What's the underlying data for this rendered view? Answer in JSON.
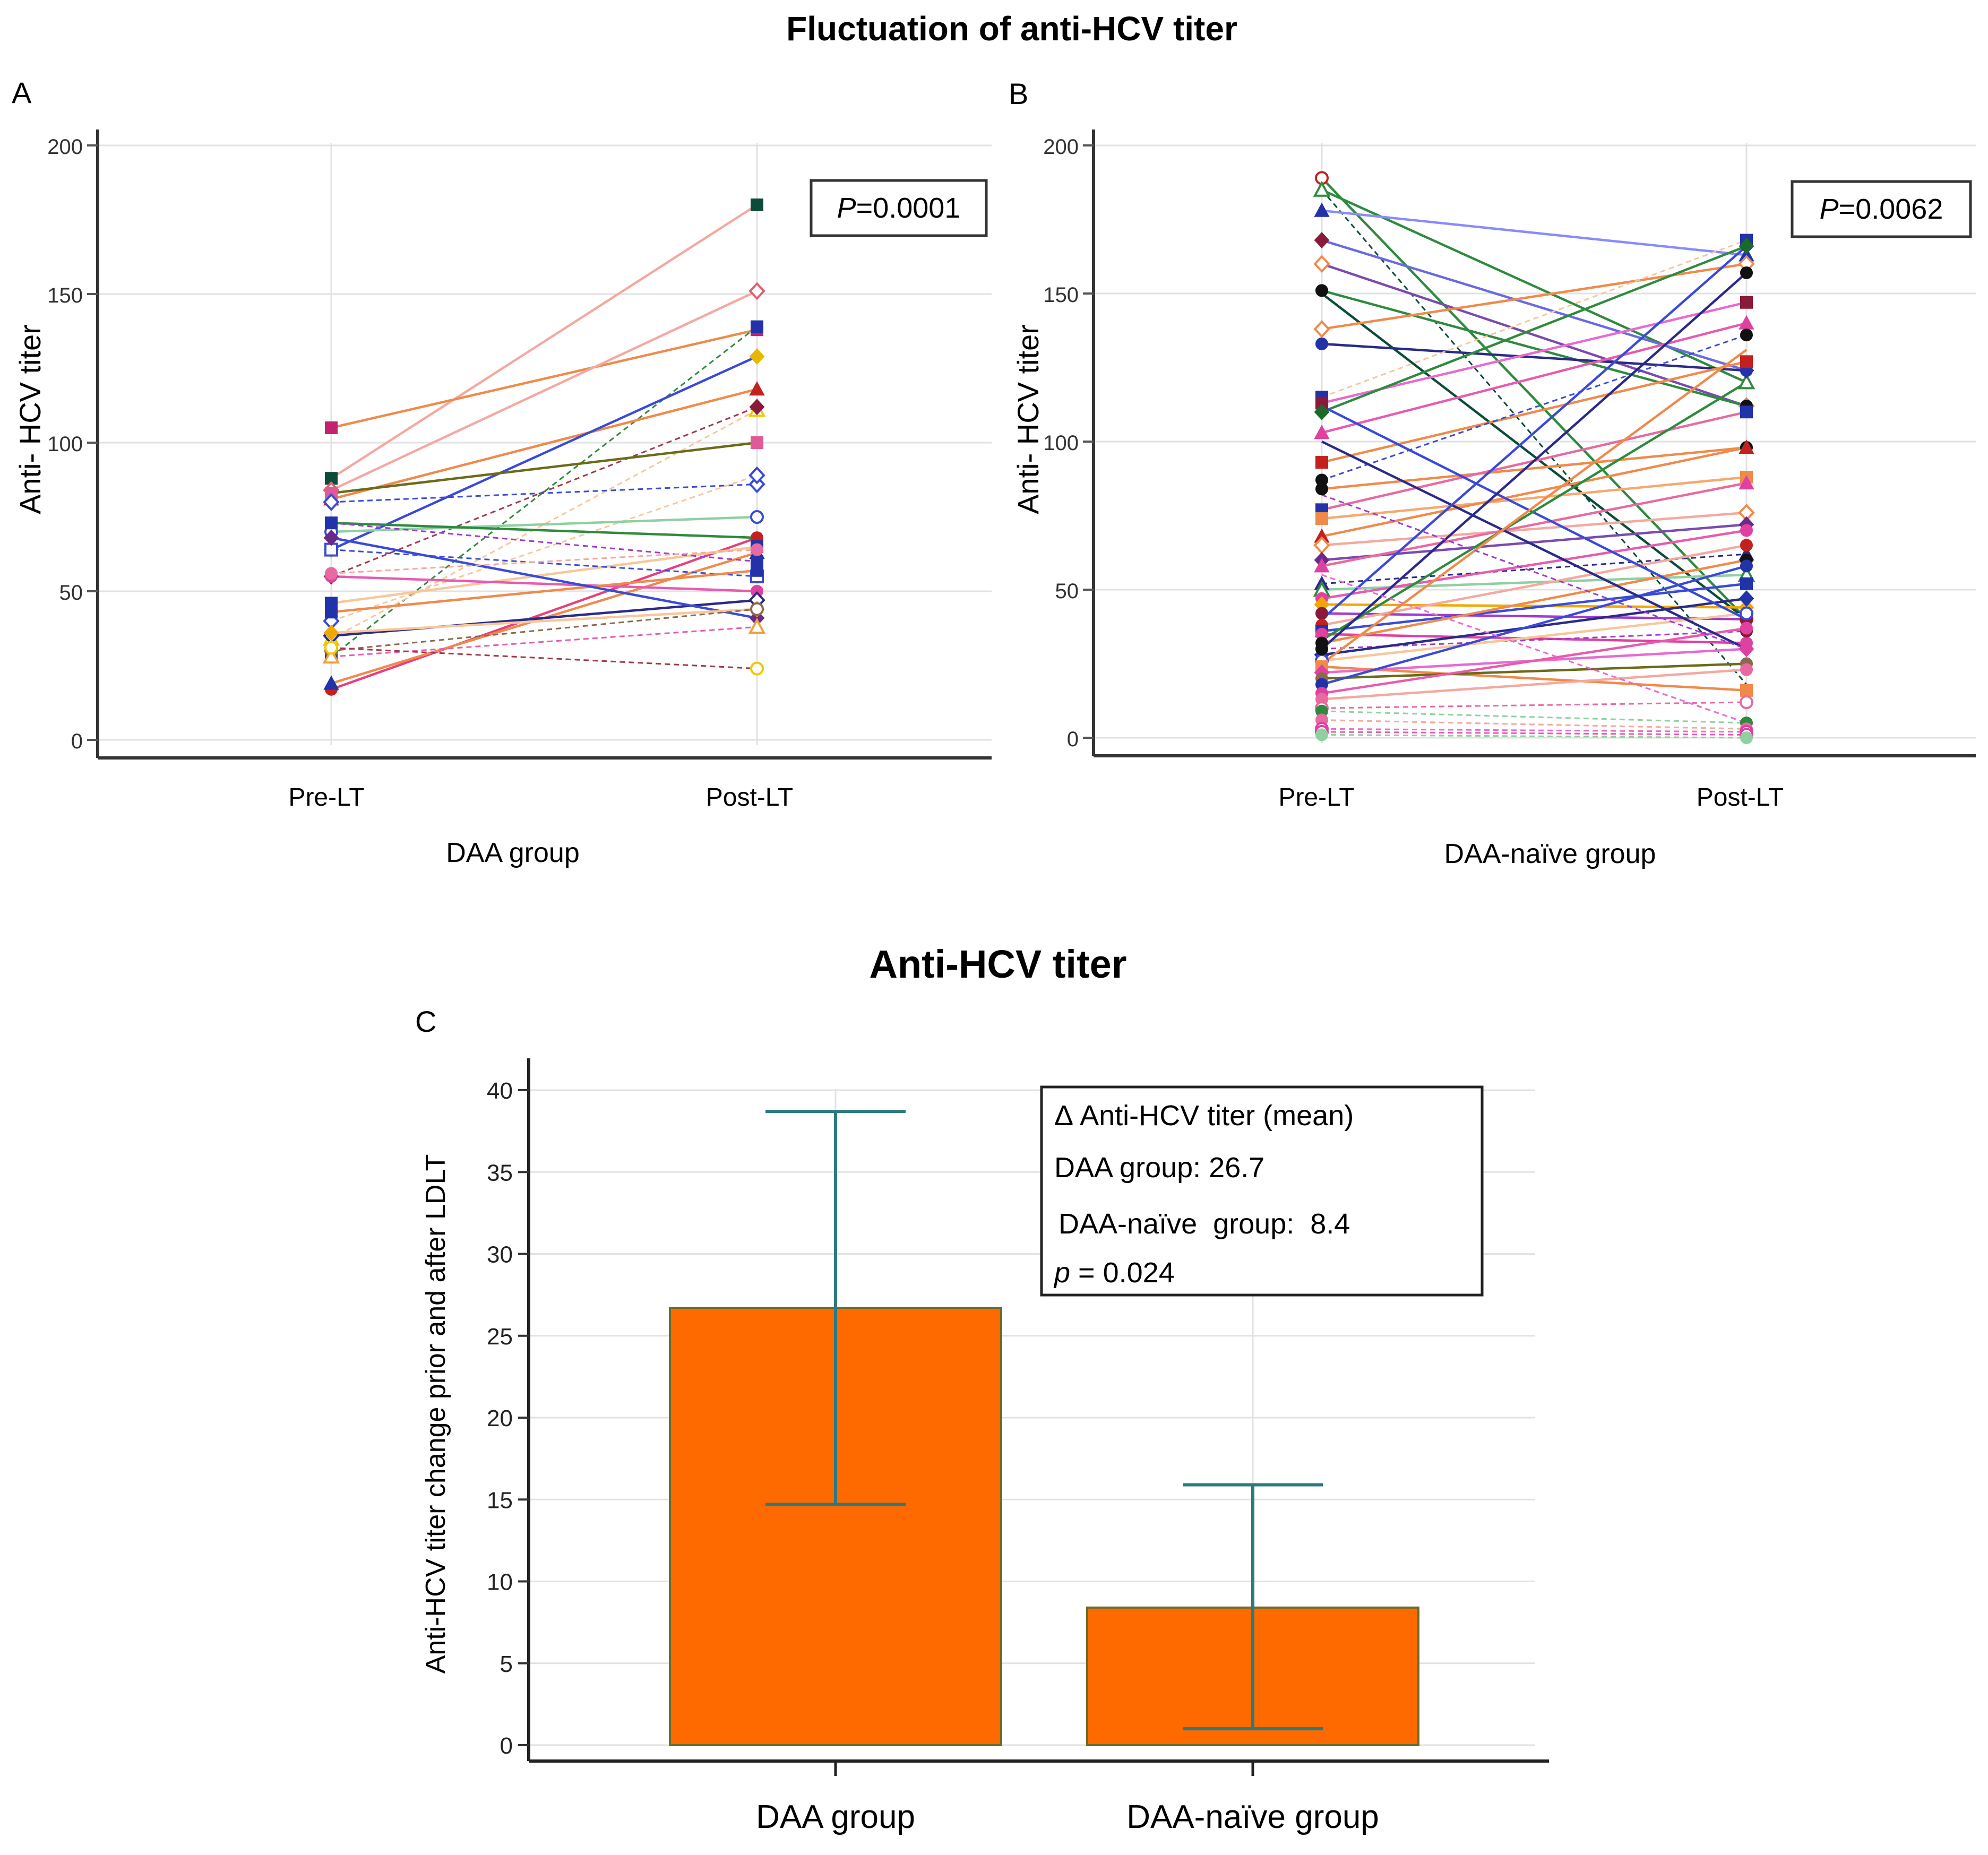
{
  "figure": {
    "title_top": "Fluctuation of anti-HCV titer",
    "title_bottom": "Anti-HCV titer"
  },
  "colors": {
    "bar": "#ff6a00",
    "bar_edge": "#6b6b2a",
    "errorbar": "#2a7a80",
    "axis": "#333333",
    "grid": "#e2e2e2"
  },
  "chart_data": [
    {
      "panel": "A",
      "type": "line",
      "title": "",
      "xlabel": "DAA group",
      "ylabel": "Anti- HCV titer",
      "categories": [
        "Pre-LT",
        "Post-LT"
      ],
      "ylim": [
        0,
        200
      ],
      "yticks": [
        "0",
        "50",
        "100",
        "150",
        "200"
      ],
      "annotation": {
        "prefix": "P",
        "text": "=0.0001"
      },
      "series": [
        {
          "values": [
            88,
            180
          ],
          "color": "#f4a9a0",
          "dash": false,
          "marker": "square",
          "mcolor": "#0b4b3a"
        },
        {
          "values": [
            105,
            138
          ],
          "color": "#f08a4b",
          "dash": false,
          "marker": "square",
          "mcolor": "#c0246f"
        },
        {
          "values": [
            84,
            151
          ],
          "color": "#f4a9a0",
          "dash": false,
          "marker": "diamond-open",
          "mcolor": "#e06070"
        },
        {
          "values": [
            28,
            139
          ],
          "color": "#2e8b3e",
          "dash": true,
          "marker": "square",
          "mcolor": "#2233aa"
        },
        {
          "values": [
            81,
            118
          ],
          "color": "#f08a4b",
          "dash": false,
          "marker": "triangle",
          "mcolor": "#c42020"
        },
        {
          "values": [
            64,
            129
          ],
          "color": "#3a4ad8",
          "dash": false,
          "marker": "diamond",
          "mcolor": "#e6b800"
        },
        {
          "values": [
            34,
            111
          ],
          "color": "#f7c79a",
          "dash": true,
          "marker": "triangle-open",
          "mcolor": "#f0c800"
        },
        {
          "values": [
            55,
            112
          ],
          "color": "#a03a4a",
          "dash": true,
          "marker": "diamond",
          "mcolor": "#8a1a3a"
        },
        {
          "values": [
            83,
            100
          ],
          "color": "#6b6b1a",
          "dash": false,
          "marker": "square",
          "mcolor": "#e05a9a"
        },
        {
          "values": [
            80,
            86
          ],
          "color": "#3a4ad8",
          "dash": true,
          "marker": "diamond-open",
          "mcolor": "#3a4ad8"
        },
        {
          "values": [
            40,
            89
          ],
          "color": "#f7c79a",
          "dash": true,
          "marker": "diamond-open",
          "mcolor": "#3a4ad8"
        },
        {
          "values": [
            70,
            75
          ],
          "color": "#8fd0a0",
          "dash": false,
          "marker": "circle-open",
          "mcolor": "#3a4ad8"
        },
        {
          "values": [
            73,
            68
          ],
          "color": "#2e8b3e",
          "dash": false,
          "marker": "circle",
          "mcolor": "#c42020"
        },
        {
          "values": [
            17,
            68
          ],
          "color": "#e8407a",
          "dash": false,
          "marker": "circle",
          "mcolor": "#c42020"
        },
        {
          "values": [
            46,
            65
          ],
          "color": "#f7c79a",
          "dash": false,
          "marker": "square",
          "mcolor": "#2233aa"
        },
        {
          "values": [
            19,
            63
          ],
          "color": "#f08a4b",
          "dash": false,
          "marker": "triangle",
          "mcolor": "#2233aa"
        },
        {
          "values": [
            73,
            60
          ],
          "color": "#a03ad0",
          "dash": true,
          "marker": "square",
          "mcolor": "#2233aa"
        },
        {
          "values": [
            64,
            55
          ],
          "color": "#3a4ad8",
          "dash": true,
          "marker": "square-open",
          "mcolor": "#3a4ad8"
        },
        {
          "values": [
            55,
            50
          ],
          "color": "#e85ab0",
          "dash": false,
          "marker": "circle",
          "mcolor": "#e040a0"
        },
        {
          "values": [
            43,
            57
          ],
          "color": "#f08a4b",
          "dash": false,
          "marker": "square",
          "mcolor": "#2233aa"
        },
        {
          "values": [
            35,
            47
          ],
          "color": "#2a2a8a",
          "dash": false,
          "marker": "diamond-open",
          "mcolor": "#2a2a8a"
        },
        {
          "values": [
            68,
            41
          ],
          "color": "#3a4ad8",
          "dash": false,
          "marker": "diamond",
          "mcolor": "#6a2a8a"
        },
        {
          "values": [
            36,
            44
          ],
          "color": "#f7c79a",
          "dash": false,
          "marker": "diamond",
          "mcolor": "#f0a800"
        },
        {
          "values": [
            30,
            44
          ],
          "color": "#8a6a4a",
          "dash": true,
          "marker": "circle-open",
          "mcolor": "#8a6a4a"
        },
        {
          "values": [
            28,
            38
          ],
          "color": "#e85ab0",
          "dash": true,
          "marker": "triangle-open",
          "mcolor": "#f0a040"
        },
        {
          "values": [
            31,
            24
          ],
          "color": "#a03a4a",
          "dash": true,
          "marker": "circle-open",
          "mcolor": "#f0c800"
        },
        {
          "values": [
            56,
            64
          ],
          "color": "#f4a9a0",
          "dash": true,
          "marker": "circle",
          "mcolor": "#e86aa0"
        }
      ]
    },
    {
      "panel": "B",
      "type": "line",
      "title": "",
      "xlabel": "DAA-naïve group",
      "ylabel": "Anti- HCV titer",
      "categories": [
        "Pre-LT",
        "Post-LT"
      ],
      "ylim": [
        0,
        200
      ],
      "yticks": [
        "0",
        "50",
        "100",
        "150",
        "200"
      ],
      "annotation": {
        "prefix": "P",
        "text": "=0.0062"
      },
      "series": [
        {
          "values": [
            189,
            40
          ],
          "color": "#2e8b3e",
          "dash": false,
          "marker": "circle-open",
          "mcolor": "#c42020"
        },
        {
          "values": [
            185,
            120
          ],
          "color": "#2e8b3e",
          "dash": false,
          "marker": "triangle-open",
          "mcolor": "#2e8b3e"
        },
        {
          "values": [
            185,
            18
          ],
          "color": "#0b4b3a",
          "dash": true,
          "marker": "none",
          "mcolor": "#0b4b3a"
        },
        {
          "values": [
            178,
            163
          ],
          "color": "#8a8aff",
          "dash": false,
          "marker": "triangle",
          "mcolor": "#2233aa"
        },
        {
          "values": [
            168,
            124
          ],
          "color": "#6a6ae0",
          "dash": false,
          "marker": "diamond",
          "mcolor": "#8a1a3a"
        },
        {
          "values": [
            160,
            112
          ],
          "color": "#7a4ab0",
          "dash": false,
          "marker": "diamond-open",
          "mcolor": "#f08a4b"
        },
        {
          "values": [
            151,
            112
          ],
          "color": "#2e8b3e",
          "dash": false,
          "marker": "circle",
          "mcolor": "#111111"
        },
        {
          "values": [
            150,
            40
          ],
          "color": "#0b4b3a",
          "dash": false,
          "marker": "none",
          "mcolor": "#0b4b3a"
        },
        {
          "values": [
            138,
            160
          ],
          "color": "#f08a4b",
          "dash": false,
          "marker": "diamond-open",
          "mcolor": "#f08a4b"
        },
        {
          "values": [
            133,
            124
          ],
          "color": "#2a2a8a",
          "dash": false,
          "marker": "circle",
          "mcolor": "#2233aa"
        },
        {
          "values": [
            115,
            168
          ],
          "color": "#f7c79a",
          "dash": true,
          "marker": "square",
          "mcolor": "#2233aa"
        },
        {
          "values": [
            113,
            147
          ],
          "color": "#e86ad0",
          "dash": false,
          "marker": "square",
          "mcolor": "#8a1a3a"
        },
        {
          "values": [
            110,
            166
          ],
          "color": "#2e8b3e",
          "dash": false,
          "marker": "diamond",
          "mcolor": "#1a6a2a"
        },
        {
          "values": [
            103,
            140
          ],
          "color": "#e85ab0",
          "dash": false,
          "marker": "triangle",
          "mcolor": "#e040a0"
        },
        {
          "values": [
            93,
            127
          ],
          "color": "#f08a4b",
          "dash": false,
          "marker": "square",
          "mcolor": "#c42020"
        },
        {
          "values": [
            87,
            136
          ],
          "color": "#3a4ad8",
          "dash": true,
          "marker": "circle",
          "mcolor": "#111111"
        },
        {
          "values": [
            84,
            98
          ],
          "color": "#f08a4b",
          "dash": false,
          "marker": "circle",
          "mcolor": "#111111"
        },
        {
          "values": [
            77,
            110
          ],
          "color": "#e86aa0",
          "dash": false,
          "marker": "square",
          "mcolor": "#2233aa"
        },
        {
          "values": [
            74,
            88
          ],
          "color": "#f7a870",
          "dash": false,
          "marker": "square",
          "mcolor": "#f08a4b"
        },
        {
          "values": [
            68,
            98
          ],
          "color": "#f08a4b",
          "dash": false,
          "marker": "triangle",
          "mcolor": "#c42020"
        },
        {
          "values": [
            65,
            76
          ],
          "color": "#f4a9a0",
          "dash": false,
          "marker": "diamond-open",
          "mcolor": "#f08a4b"
        },
        {
          "values": [
            60,
            72
          ],
          "color": "#7a4ab0",
          "dash": false,
          "marker": "diamond",
          "mcolor": "#6a2a8a"
        },
        {
          "values": [
            58,
            86
          ],
          "color": "#e86aa0",
          "dash": false,
          "marker": "triangle",
          "mcolor": "#e040a0"
        },
        {
          "values": [
            52,
            62
          ],
          "color": "#2a2a8a",
          "dash": true,
          "marker": "triangle",
          "mcolor": "#2a2a8a"
        },
        {
          "values": [
            50,
            55
          ],
          "color": "#8fd0a0",
          "dash": false,
          "marker": "triangle-open",
          "mcolor": "#2e8b3e"
        },
        {
          "values": [
            47,
            70
          ],
          "color": "#e85ab0",
          "dash": false,
          "marker": "circle",
          "mcolor": "#e040a0"
        },
        {
          "values": [
            45,
            44
          ],
          "color": "#f0a800",
          "dash": false,
          "marker": "diamond",
          "mcolor": "#f0a800"
        },
        {
          "values": [
            42,
            40
          ],
          "color": "#a03ad0",
          "dash": false,
          "marker": "circle",
          "mcolor": "#8a1a3a"
        },
        {
          "values": [
            38,
            65
          ],
          "color": "#f4a9a0",
          "dash": false,
          "marker": "circle",
          "mcolor": "#c42020"
        },
        {
          "values": [
            36,
            52
          ],
          "color": "#3a4ad8",
          "dash": false,
          "marker": "square",
          "mcolor": "#2233aa"
        },
        {
          "values": [
            35,
            32
          ],
          "color": "#e040a0",
          "dash": false,
          "marker": "circle",
          "mcolor": "#e040a0"
        },
        {
          "values": [
            32,
            60
          ],
          "color": "#f08a4b",
          "dash": false,
          "marker": "circle",
          "mcolor": "#111111"
        },
        {
          "values": [
            30,
            36
          ],
          "color": "#a03ad0",
          "dash": true,
          "marker": "circle",
          "mcolor": "#8a1a3a"
        },
        {
          "values": [
            28,
            47
          ],
          "color": "#2a2a8a",
          "dash": false,
          "marker": "diamond",
          "mcolor": "#2233aa"
        },
        {
          "values": [
            26,
            42
          ],
          "color": "#f7c79a",
          "dash": false,
          "marker": "circle-open",
          "mcolor": "#3a4ad8"
        },
        {
          "values": [
            24,
            16
          ],
          "color": "#f08a4b",
          "dash": false,
          "marker": "square",
          "mcolor": "#f08a4b"
        },
        {
          "values": [
            22,
            30
          ],
          "color": "#e86ad0",
          "dash": false,
          "marker": "diamond",
          "mcolor": "#e040a0"
        },
        {
          "values": [
            20,
            25
          ],
          "color": "#6b6b1a",
          "dash": false,
          "marker": "circle",
          "mcolor": "#8a6a4a"
        },
        {
          "values": [
            18,
            58
          ],
          "color": "#3a4ad8",
          "dash": false,
          "marker": "circle",
          "mcolor": "#2233aa"
        },
        {
          "values": [
            15,
            37
          ],
          "color": "#e85ab0",
          "dash": false,
          "marker": "circle",
          "mcolor": "#e040a0"
        },
        {
          "values": [
            13,
            23
          ],
          "color": "#f4a9a0",
          "dash": false,
          "marker": "circle",
          "mcolor": "#e86aa0"
        },
        {
          "values": [
            10,
            12
          ],
          "color": "#e86aa0",
          "dash": true,
          "marker": "circle-open",
          "mcolor": "#e86aa0"
        },
        {
          "values": [
            9,
            5
          ],
          "color": "#8fd0a0",
          "dash": true,
          "marker": "circle",
          "mcolor": "#2e8b3e"
        },
        {
          "values": [
            6,
            3
          ],
          "color": "#f4a9a0",
          "dash": true,
          "marker": "circle",
          "mcolor": "#e86aa0"
        },
        {
          "values": [
            3,
            2
          ],
          "color": "#e86ad0",
          "dash": true,
          "marker": "circle-open",
          "mcolor": "#e040a0"
        },
        {
          "values": [
            2,
            1
          ],
          "color": "#e85ab0",
          "dash": true,
          "marker": "circle-open",
          "mcolor": "#e040a0"
        },
        {
          "values": [
            1,
            0
          ],
          "color": "#8fd0a0",
          "dash": true,
          "marker": "circle",
          "mcolor": "#8fd0a0"
        },
        {
          "values": [
            112,
            40
          ],
          "color": "#3a4ad8",
          "dash": false,
          "marker": "none",
          "mcolor": "#3a4ad8"
        },
        {
          "values": [
            100,
            30
          ],
          "color": "#2a2a8a",
          "dash": false,
          "marker": "none",
          "mcolor": "#2a2a8a"
        },
        {
          "values": [
            40,
            166
          ],
          "color": "#3a4ad8",
          "dash": false,
          "marker": "none",
          "mcolor": "#3a4ad8"
        },
        {
          "values": [
            33,
            120
          ],
          "color": "#2e8b3e",
          "dash": false,
          "marker": "none",
          "mcolor": "#2e8b3e"
        },
        {
          "values": [
            30,
            157
          ],
          "color": "#2a2a8a",
          "dash": false,
          "marker": "circle",
          "mcolor": "#111111"
        },
        {
          "values": [
            25,
            131
          ],
          "color": "#f08a4b",
          "dash": false,
          "marker": "none",
          "mcolor": "#f08a4b"
        },
        {
          "values": [
            82,
            30
          ],
          "color": "#a03ad0",
          "dash": true,
          "marker": "none",
          "mcolor": "#a03ad0"
        },
        {
          "values": [
            55,
            5
          ],
          "color": "#e86ad0",
          "dash": true,
          "marker": "none",
          "mcolor": "#e86ad0"
        }
      ]
    },
    {
      "panel": "C",
      "type": "bar",
      "title": "Anti-HCV titer",
      "xlabel": "",
      "ylabel": "Anti-HCV titer change prior and after LDLT",
      "categories": [
        "DAA group",
        "DAA-naïve group"
      ],
      "values": [
        26.7,
        8.4
      ],
      "error_low": [
        14.7,
        1.0
      ],
      "error_high": [
        38.7,
        15.9
      ],
      "ylim": [
        0,
        40
      ],
      "yticks": [
        "0",
        "5",
        "10",
        "15",
        "20",
        "25",
        "30",
        "35",
        "40"
      ],
      "legend_box": {
        "line1": "Δ Anti-HCV titer (mean)",
        "line2": "DAA group: 26.7",
        "line3": "DAA-naïve  group:  8.4",
        "line4_prefix": "p",
        "line4_rest": " = 0.024"
      }
    }
  ],
  "panel_labels": [
    "A",
    "B",
    "C"
  ]
}
